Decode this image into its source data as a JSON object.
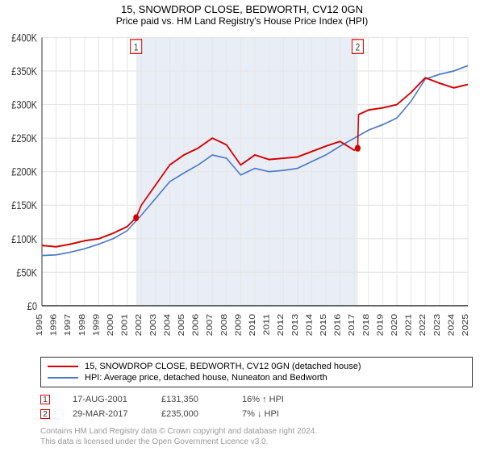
{
  "title": "15, SNOWDROP CLOSE, BEDWORTH, CV12 0GN",
  "subtitle": "Price paid vs. HM Land Registry's House Price Index (HPI)",
  "chart": {
    "type": "line",
    "xlim": [
      1995,
      2025
    ],
    "ylim": [
      0,
      400000
    ],
    "ytick_step": 50000,
    "xtick_step": 1,
    "y_ticks": [
      "£0",
      "£50K",
      "£100K",
      "£150K",
      "£200K",
      "£250K",
      "£300K",
      "£350K",
      "£400K"
    ],
    "x_ticks": [
      "1995",
      "1996",
      "1997",
      "1998",
      "1999",
      "2000",
      "2001",
      "2002",
      "2003",
      "2004",
      "2005",
      "2006",
      "2007",
      "2008",
      "2009",
      "2010",
      "2011",
      "2012",
      "2013",
      "2014",
      "2015",
      "2016",
      "2017",
      "2018",
      "2019",
      "2020",
      "2021",
      "2022",
      "2023",
      "2024",
      "2025"
    ],
    "grid_color": "#e6e6e6",
    "axis_color": "#333333",
    "background_color": "#ffffff",
    "shade": {
      "from": 2001.63,
      "to": 2017.24,
      "color": "#e9edf5"
    },
    "series": [
      {
        "name": "subject",
        "color": "#d40000",
        "width": 1.6,
        "label": "15, SNOWDROP CLOSE, BEDWORTH, CV12 0GN (detached house)",
        "points": [
          [
            1995,
            90000
          ],
          [
            1996,
            88000
          ],
          [
            1997,
            92000
          ],
          [
            1998,
            97000
          ],
          [
            1999,
            100000
          ],
          [
            2000,
            108000
          ],
          [
            2001,
            118000
          ],
          [
            2001.63,
            131350
          ],
          [
            2002,
            150000
          ],
          [
            2003,
            180000
          ],
          [
            2004,
            210000
          ],
          [
            2005,
            225000
          ],
          [
            2006,
            235000
          ],
          [
            2007,
            250000
          ],
          [
            2008,
            240000
          ],
          [
            2009,
            210000
          ],
          [
            2010,
            225000
          ],
          [
            2011,
            218000
          ],
          [
            2012,
            220000
          ],
          [
            2013,
            222000
          ],
          [
            2014,
            230000
          ],
          [
            2015,
            238000
          ],
          [
            2016,
            245000
          ],
          [
            2017,
            232000
          ],
          [
            2017.24,
            235000
          ],
          [
            2017.3,
            285000
          ],
          [
            2018,
            292000
          ],
          [
            2019,
            295000
          ],
          [
            2020,
            300000
          ],
          [
            2021,
            318000
          ],
          [
            2022,
            340000
          ],
          [
            2023,
            332000
          ],
          [
            2024,
            325000
          ],
          [
            2025,
            330000
          ]
        ]
      },
      {
        "name": "hpi",
        "color": "#4a7ac7",
        "width": 1.4,
        "label": "HPI: Average price, detached house, Nuneaton and Bedworth",
        "points": [
          [
            1995,
            75000
          ],
          [
            1996,
            76000
          ],
          [
            1997,
            80000
          ],
          [
            1998,
            85000
          ],
          [
            1999,
            92000
          ],
          [
            2000,
            100000
          ],
          [
            2001,
            112000
          ],
          [
            2002,
            135000
          ],
          [
            2003,
            160000
          ],
          [
            2004,
            185000
          ],
          [
            2005,
            198000
          ],
          [
            2006,
            210000
          ],
          [
            2007,
            225000
          ],
          [
            2008,
            220000
          ],
          [
            2009,
            195000
          ],
          [
            2010,
            205000
          ],
          [
            2011,
            200000
          ],
          [
            2012,
            202000
          ],
          [
            2013,
            205000
          ],
          [
            2014,
            215000
          ],
          [
            2015,
            225000
          ],
          [
            2016,
            238000
          ],
          [
            2017,
            250000
          ],
          [
            2018,
            262000
          ],
          [
            2019,
            270000
          ],
          [
            2020,
            280000
          ],
          [
            2021,
            305000
          ],
          [
            2022,
            338000
          ],
          [
            2023,
            345000
          ],
          [
            2024,
            350000
          ],
          [
            2025,
            358000
          ]
        ]
      }
    ],
    "markers": [
      {
        "id": "1",
        "x": 2001.63,
        "y": 131350,
        "box_color": "#d40000",
        "dot_color": "#d40000"
      },
      {
        "id": "2",
        "x": 2017.24,
        "y": 235000,
        "box_color": "#d40000",
        "dot_color": "#d40000"
      }
    ]
  },
  "legend": [
    {
      "color": "#d40000",
      "label": "15, SNOWDROP CLOSE, BEDWORTH, CV12 0GN (detached house)"
    },
    {
      "color": "#4a7ac7",
      "label": "HPI: Average price, detached house, Nuneaton and Bedworth"
    }
  ],
  "events": [
    {
      "id": "1",
      "box_color": "#d40000",
      "date": "17-AUG-2001",
      "price": "£131,350",
      "hpi": "16% ↑ HPI"
    },
    {
      "id": "2",
      "box_color": "#d40000",
      "date": "29-MAR-2017",
      "price": "£235,000",
      "hpi": "7% ↓ HPI"
    }
  ],
  "attribution_line1": "Contains HM Land Registry data © Crown copyright and database right 2024.",
  "attribution_line2": "This data is licensed under the Open Government Licence v3.0."
}
